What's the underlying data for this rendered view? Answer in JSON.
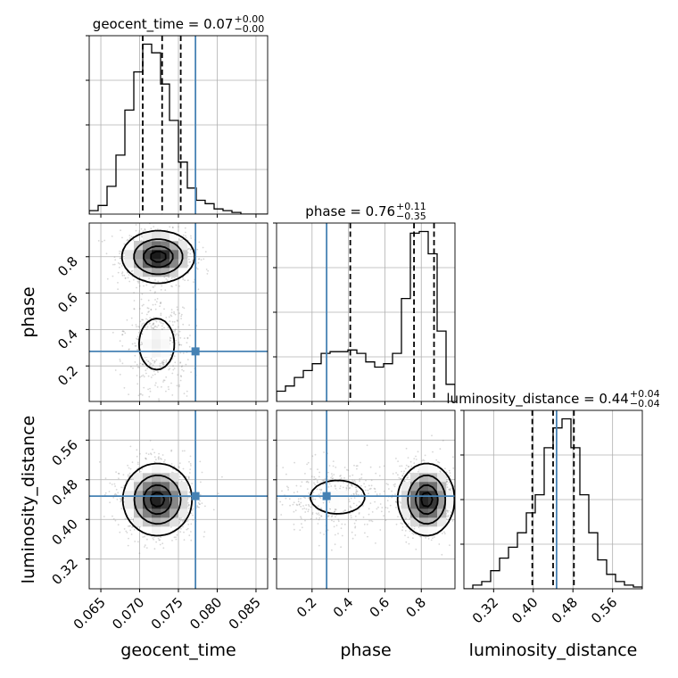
{
  "chart_data": {
    "type": "corner",
    "parameters": [
      "geocent_time",
      "phase",
      "luminosity_distance"
    ],
    "truths": {
      "geocent_time": 0.0772,
      "phase": 0.28,
      "luminosity_distance": 0.447
    },
    "accent_color": "#4682b4",
    "grid": true,
    "titles": [
      {
        "param": "geocent_time",
        "label": "geocent_time = 0.07",
        "sup": "+0.00",
        "sub": "−0.00"
      },
      {
        "param": "phase",
        "label": "phase = 0.76",
        "sup": "+0.11",
        "sub": "−0.35"
      },
      {
        "param": "luminosity_distance",
        "label": "luminosity_distance = 0.44",
        "sup": "+0.04",
        "sub": "−0.04"
      }
    ],
    "axis_labels": {
      "geocent_time": "geocent_time",
      "phase": "phase",
      "luminosity_distance": "luminosity_distance"
    },
    "ticks": {
      "geocent_time": [
        "0.065",
        "0.070",
        "0.075",
        "0.080",
        "0.085"
      ],
      "phase": [
        "0.2",
        "0.4",
        "0.6",
        "0.8"
      ],
      "luminosity_distance": [
        "0.32",
        "0.40",
        "0.48",
        "0.56"
      ]
    },
    "ranges": {
      "geocent_time": [
        0.0635,
        0.0865
      ],
      "phase": [
        0.005,
        0.985
      ],
      "luminosity_distance": [
        0.26,
        0.62
      ]
    },
    "histograms": {
      "geocent_time": {
        "edges_start": 0.0635,
        "bin_width": 0.00115,
        "counts": [
          2,
          5,
          16,
          34,
          60,
          82,
          98,
          93,
          75,
          54,
          30,
          15,
          8,
          6,
          3,
          2,
          1,
          0,
          0,
          0
        ],
        "quantiles": [
          0.0704,
          0.0729,
          0.0753
        ]
      },
      "phase": {
        "edges_start": 0.005,
        "bin_width": 0.049,
        "counts": [
          6,
          9,
          14,
          18,
          22,
          28,
          29,
          29,
          30,
          28,
          23,
          20,
          22,
          28,
          60,
          98,
          99,
          86,
          41,
          10
        ],
        "quantiles": [
          0.41,
          0.76,
          0.87
        ]
      },
      "luminosity_distance": {
        "edges_start": 0.26,
        "bin_width": 0.018,
        "counts": [
          0,
          2,
          4,
          10,
          17,
          23,
          31,
          42,
          52,
          78,
          89,
          94,
          78,
          52,
          31,
          16,
          8,
          4,
          2,
          1
        ],
        "quantiles": [
          0.398,
          0.44,
          0.482
        ]
      }
    },
    "density_peaks": {
      "geocent_time_vs_phase": [
        {
          "x": 0.0724,
          "y": 0.8
        },
        {
          "x": 0.0722,
          "y": 0.3
        }
      ],
      "geocent_time_vs_luminosity_distance": [
        {
          "x": 0.0723,
          "y": 0.437
        }
      ],
      "phase_vs_luminosity_distance": [
        {
          "x": 0.83,
          "y": 0.44
        },
        {
          "x": 0.3,
          "y": 0.445
        }
      ]
    }
  }
}
